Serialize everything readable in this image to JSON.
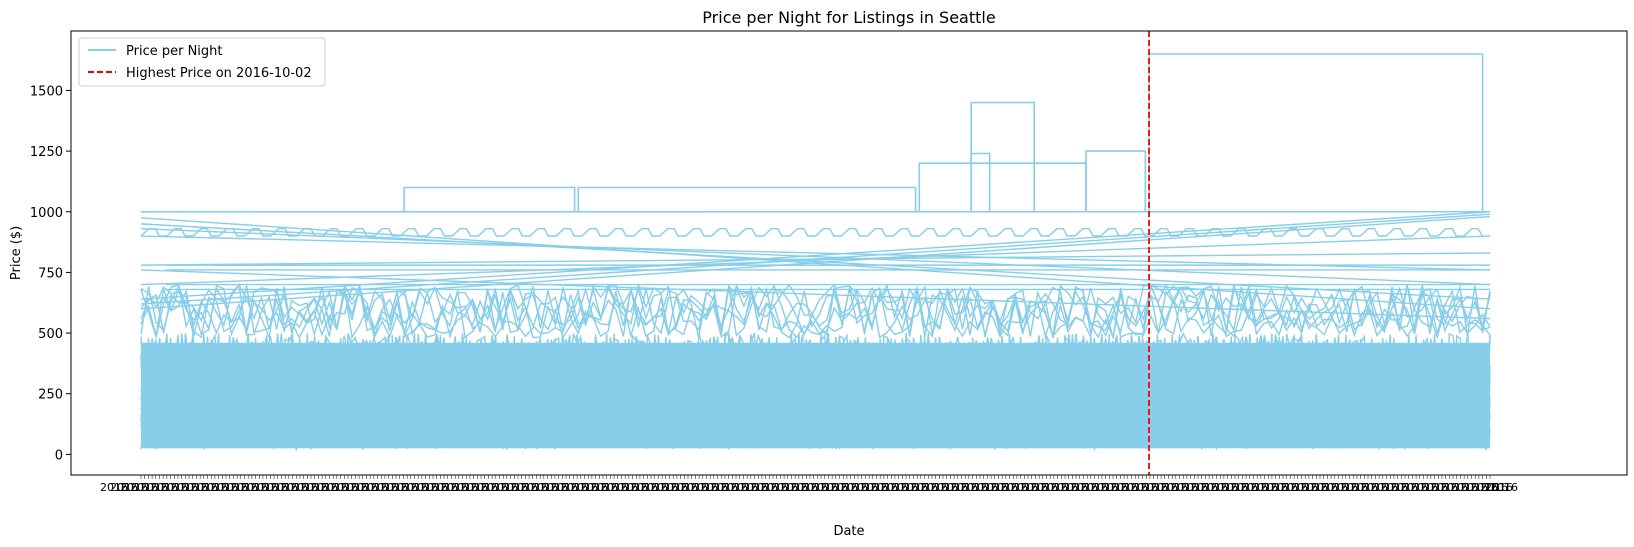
{
  "chart_data": {
    "type": "line",
    "title": "Price per Night for Listings in Seattle",
    "xlabel": "Date",
    "ylabel": "Price ($)",
    "ylim": [
      -85,
      1745
    ],
    "yticks": [
      0,
      250,
      500,
      750,
      1000,
      1250,
      1500
    ],
    "xtick_labels_note": "",
    "legend_location": "upper-left",
    "grid": false,
    "colors": {
      "series": "#87ceeb",
      "highlight": "#ff0000"
    },
    "series": [
      {
        "name": "Price per Night",
        "color": "#87ceeb"
      }
    ],
    "reference_line": {
      "label": "Highest Price on 2016-10-02",
      "x": "2016-10-02",
      "color": "#ff0000",
      "style": "dashed"
    },
    "x_range": [
      "2016-01-04",
      "2017-01-02"
    ],
    "price_band": {
      "low": 20,
      "high": 500
    },
    "notable_steps": [
      {
        "from": "2016-01-04",
        "to": "2016-06-05",
        "value": 1000
      },
      {
        "from": "2016-03-15",
        "to": "2016-04-30",
        "value": 1100
      },
      {
        "from": "2016-05-01",
        "to": "2016-07-31",
        "value": 1100
      },
      {
        "from": "2016-08-01",
        "to": "2016-09-15",
        "value": 1200
      },
      {
        "from": "2016-08-15",
        "to": "2016-08-20",
        "value": 1240
      },
      {
        "from": "2016-09-15",
        "to": "2016-10-01",
        "value": 1250
      },
      {
        "from": "2016-08-15",
        "to": "2016-09-01",
        "value": 1450
      },
      {
        "from": "2016-10-02",
        "to": "2016-12-31",
        "value": 1650
      }
    ]
  }
}
